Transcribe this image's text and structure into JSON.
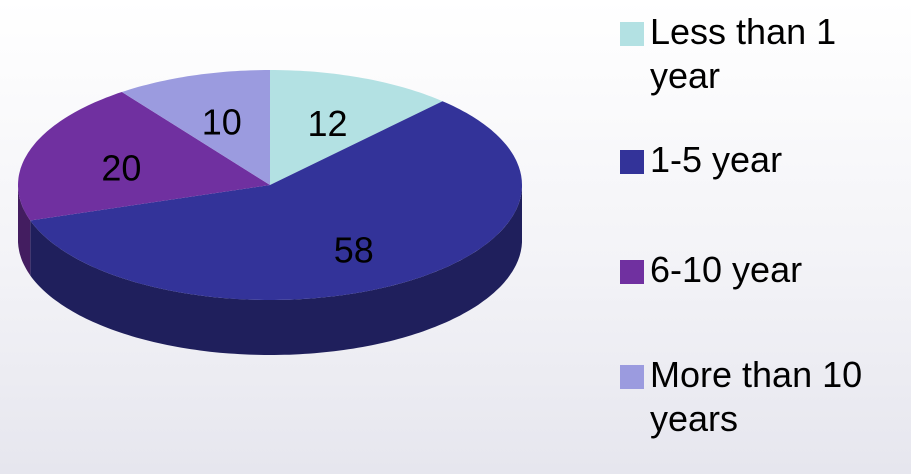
{
  "chart_data": {
    "type": "pie",
    "categories": [
      "Less than 1 year",
      "1-5 year",
      "6-10 year",
      "More than 10 years"
    ],
    "values": [
      12,
      58,
      20,
      10
    ],
    "colors": [
      "#b3e1e3",
      "#333399",
      "#7030a0",
      "#9b9bdf"
    ],
    "legend": "right"
  }
}
